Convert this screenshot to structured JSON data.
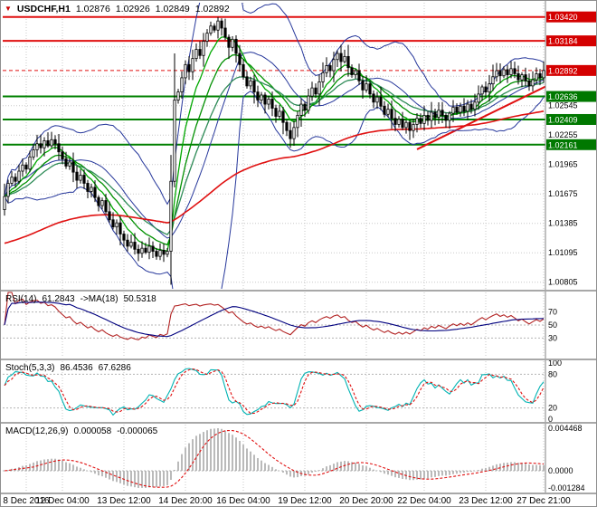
{
  "header": {
    "symbol": "USDCHF,H1",
    "open": "1.02876",
    "high": "1.02926",
    "low": "1.02849",
    "close": "1.02892"
  },
  "panels": {
    "rsi": {
      "name": "RSI(14)",
      "value": "61.2843",
      "ma_name": "->MA(18)",
      "ma_value": "50.5318"
    },
    "stoch": {
      "name": "Stoch(5,3,3)",
      "value": "86.4536",
      "signal_value": "67.6286"
    },
    "macd": {
      "name": "MACD(12,26,9)",
      "value": "0.000058",
      "signal_value": "-0.000065"
    }
  },
  "chart_data": {
    "type": "candlestick",
    "symbol": "USDCHF",
    "timeframe": "H1",
    "first_open": 1.0152,
    "closes": [
      1.0165,
      1.0178,
      1.0184,
      1.018,
      1.019,
      1.0196,
      1.0192,
      1.0204,
      1.0211,
      1.0217,
      1.0213,
      1.022,
      1.0215,
      1.0221,
      1.0217,
      1.0209,
      1.0202,
      1.0195,
      1.0199,
      1.0189,
      1.0181,
      1.0186,
      1.0178,
      1.017,
      1.0174,
      1.0164,
      1.0156,
      1.0161,
      1.015,
      1.0142,
      1.0135,
      1.0139,
      1.0128,
      1.0122,
      1.0116,
      1.012,
      1.0113,
      1.0109,
      1.0114,
      1.011,
      1.0116,
      1.0111,
      1.0106,
      1.0112,
      1.0108,
      1.0111,
      1.018,
      1.026,
      1.0268,
      1.0282,
      1.0295,
      1.0288,
      1.0301,
      1.031,
      1.0304,
      1.0318,
      1.0326,
      1.0333,
      1.0329,
      1.0338,
      1.0331,
      1.0322,
      1.0312,
      1.032,
      1.0306,
      1.0295,
      1.0283,
      1.0274,
      1.0279,
      1.0268,
      1.026,
      1.0265,
      1.0256,
      1.0261,
      1.0252,
      1.0244,
      1.0249,
      1.0238,
      1.023,
      1.0222,
      1.0233,
      1.0245,
      1.0256,
      1.025,
      1.0264,
      1.0272,
      1.0266,
      1.0278,
      1.0287,
      1.0294,
      1.0289,
      1.03,
      1.0306,
      1.0298,
      1.0303,
      1.0292,
      1.0285,
      1.0289,
      1.0279,
      1.027,
      1.0276,
      1.0266,
      1.0258,
      1.0263,
      1.0254,
      1.0246,
      1.0251,
      1.0242,
      1.0236,
      1.0241,
      1.0233,
      1.0238,
      1.023,
      1.0236,
      1.0242,
      1.0237,
      1.0245,
      1.024,
      1.0248,
      1.0243,
      1.025,
      1.0245,
      1.024,
      1.0247,
      1.0253,
      1.0248,
      1.0254,
      1.0249,
      1.0256,
      1.0251,
      1.0258,
      1.0266,
      1.0273,
      1.0268,
      1.0276,
      1.0283,
      1.0289,
      1.0284,
      1.029,
      1.0285,
      1.0291,
      1.0286,
      1.028,
      1.0285,
      1.0279,
      1.0274,
      1.028,
      1.0286,
      1.0282,
      1.02892
    ],
    "overrides": {
      "10": {
        "h": 1.0226
      },
      "46": {
        "h": 1.0206,
        "l": 1.0078
      },
      "47": {
        "h": 1.0306,
        "l": 1.0174
      },
      "59": {
        "h": 1.0342
      },
      "79": {
        "l": 1.0213
      },
      "92": {
        "h": 1.0309
      },
      "135": {
        "h": 1.0295
      }
    },
    "price_axis": {
      "range_max": 1.0356,
      "range_min": 1.0074,
      "current": "1.02892",
      "plain_ticks": [
        "1.02545",
        "1.02255",
        "1.01965",
        "1.01675",
        "1.01385",
        "1.01095",
        "1.00805"
      ],
      "grid_extra": [
        "1.02835",
        "1.03125"
      ]
    },
    "levels": {
      "resistance": [
        "1.03420",
        "1.03184"
      ],
      "support": [
        "1.02636",
        "1.02409",
        "1.02161"
      ]
    },
    "trendline": {
      "bar1": 114,
      "price1": 1.02115,
      "bar2": 151,
      "price2": 1.0276
    },
    "overlays": {
      "bollinger": {
        "period": 20,
        "dev": 2,
        "color": "#26379b"
      },
      "green_mas": [
        {
          "period": 7,
          "color": "#00a800"
        },
        {
          "period": 13,
          "color": "#009000"
        },
        {
          "period": 21,
          "color": "#2e8b57"
        }
      ],
      "red_ma": {
        "period": 110,
        "seed": 1.0118,
        "color": "#e01010"
      }
    },
    "time_axis": [
      {
        "text": "8 Dec 2016",
        "bar": 6
      },
      {
        "text": "12 Dec 04:00",
        "bar": 16
      },
      {
        "text": "13 Dec 12:00",
        "bar": 33
      },
      {
        "text": "14 Dec 20:00",
        "bar": 50
      },
      {
        "text": "16 Dec 04:00",
        "bar": 66
      },
      {
        "text": "19 Dec 12:00",
        "bar": 83
      },
      {
        "text": "20 Dec 20:00",
        "bar": 100
      },
      {
        "text": "22 Dec 04:00",
        "bar": 116
      },
      {
        "text": "23 Dec 12:00",
        "bar": 133
      },
      {
        "text": "27 Dec 21:00",
        "bar": 149
      }
    ],
    "indicators": {
      "rsi": {
        "period": 14,
        "ma_period": 18,
        "levels": [
          "70",
          "50",
          "30"
        ],
        "colors": {
          "main": "#b22222",
          "ma": "#00007f"
        }
      },
      "stoch": {
        "k_period": 5,
        "slowing": 3,
        "d_period": 3,
        "level_lines": [
          80,
          20
        ],
        "axis_labels": [
          "100",
          "80",
          "20",
          "0"
        ],
        "colors": {
          "main": "#00b3b3",
          "signal": "#e01010"
        }
      },
      "macd": {
        "fast": 12,
        "slow": 26,
        "signal": 9,
        "axis_labels": [
          {
            "text": "0.004468",
            "at": "max"
          },
          {
            "text": "0.0000",
            "at": "zero"
          },
          {
            "text": "-0.001284",
            "at": "min"
          }
        ],
        "colors": {
          "hist": "#a8a8a8",
          "signal": "#e01010"
        }
      }
    },
    "colors": {
      "grid": "#c9c9c9",
      "panel_level": "#b4b4b4",
      "bull": "#ffffff",
      "bear": "#000000",
      "outline": "#000000",
      "resistance": "#e01010",
      "support": "#008000",
      "trend": "#e01010",
      "red_ma": "#e01010",
      "label_res_bg": "#d40000",
      "label_sup_bg": "#007800",
      "current_bg": "#d40000"
    }
  }
}
